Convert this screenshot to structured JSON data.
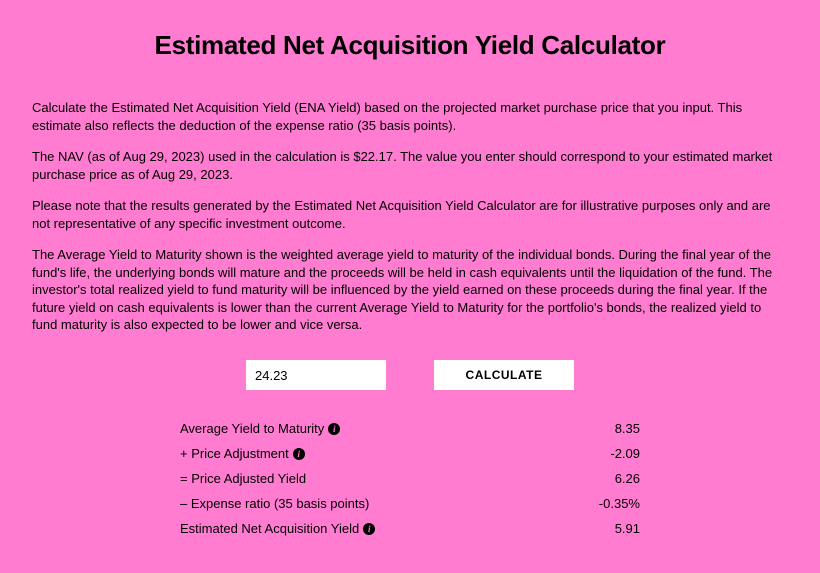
{
  "title": "Estimated Net Acquisition Yield Calculator",
  "paragraphs": {
    "p1": "Calculate the Estimated Net Acquisition Yield (ENA Yield) based on the projected market purchase price that you input. This estimate also reflects the deduction of the expense ratio (35 basis points).",
    "p2": "The NAV (as of Aug 29, 2023) used in the calculation is $22.17. The value you enter should correspond to your estimated market purchase price as of Aug 29, 2023.",
    "p3": "Please note that the results generated by the Estimated Net Acquisition Yield Calculator are for illustrative purposes only and are not representative of any specific investment outcome.",
    "p4": "The Average Yield to Maturity shown is the weighted average yield to maturity of the individual bonds. During the final year of the fund's life, the underlying bonds will mature and the proceeds will be held in cash equivalents until the liquidation of the fund. The investor's total realized yield to fund maturity will be influenced by the yield earned on these proceeds during the final year. If the future yield on cash equivalents is lower than the current Average Yield to Maturity for the portfolio's bonds, the realized yield to fund maturity is also expected to be lower and vice versa."
  },
  "input": {
    "value": "24.23"
  },
  "button": {
    "label": "CALCULATE"
  },
  "results": {
    "r1": {
      "label": "Average Yield to Maturity",
      "value": "8.35",
      "info": true
    },
    "r2": {
      "label": "+ Price Adjustment",
      "value": "-2.09",
      "info": true
    },
    "r3": {
      "label": "= Price Adjusted Yield",
      "value": "6.26",
      "info": false
    },
    "r4": {
      "label": "– Expense ratio (35 basis points)",
      "value": "-0.35%",
      "info": false
    },
    "r5": {
      "label": "Estimated Net Acquisition Yield",
      "value": "5.91",
      "info": true
    }
  },
  "colors": {
    "background": "#ff7cd0",
    "text": "#000000",
    "input_bg": "#ffffff"
  }
}
